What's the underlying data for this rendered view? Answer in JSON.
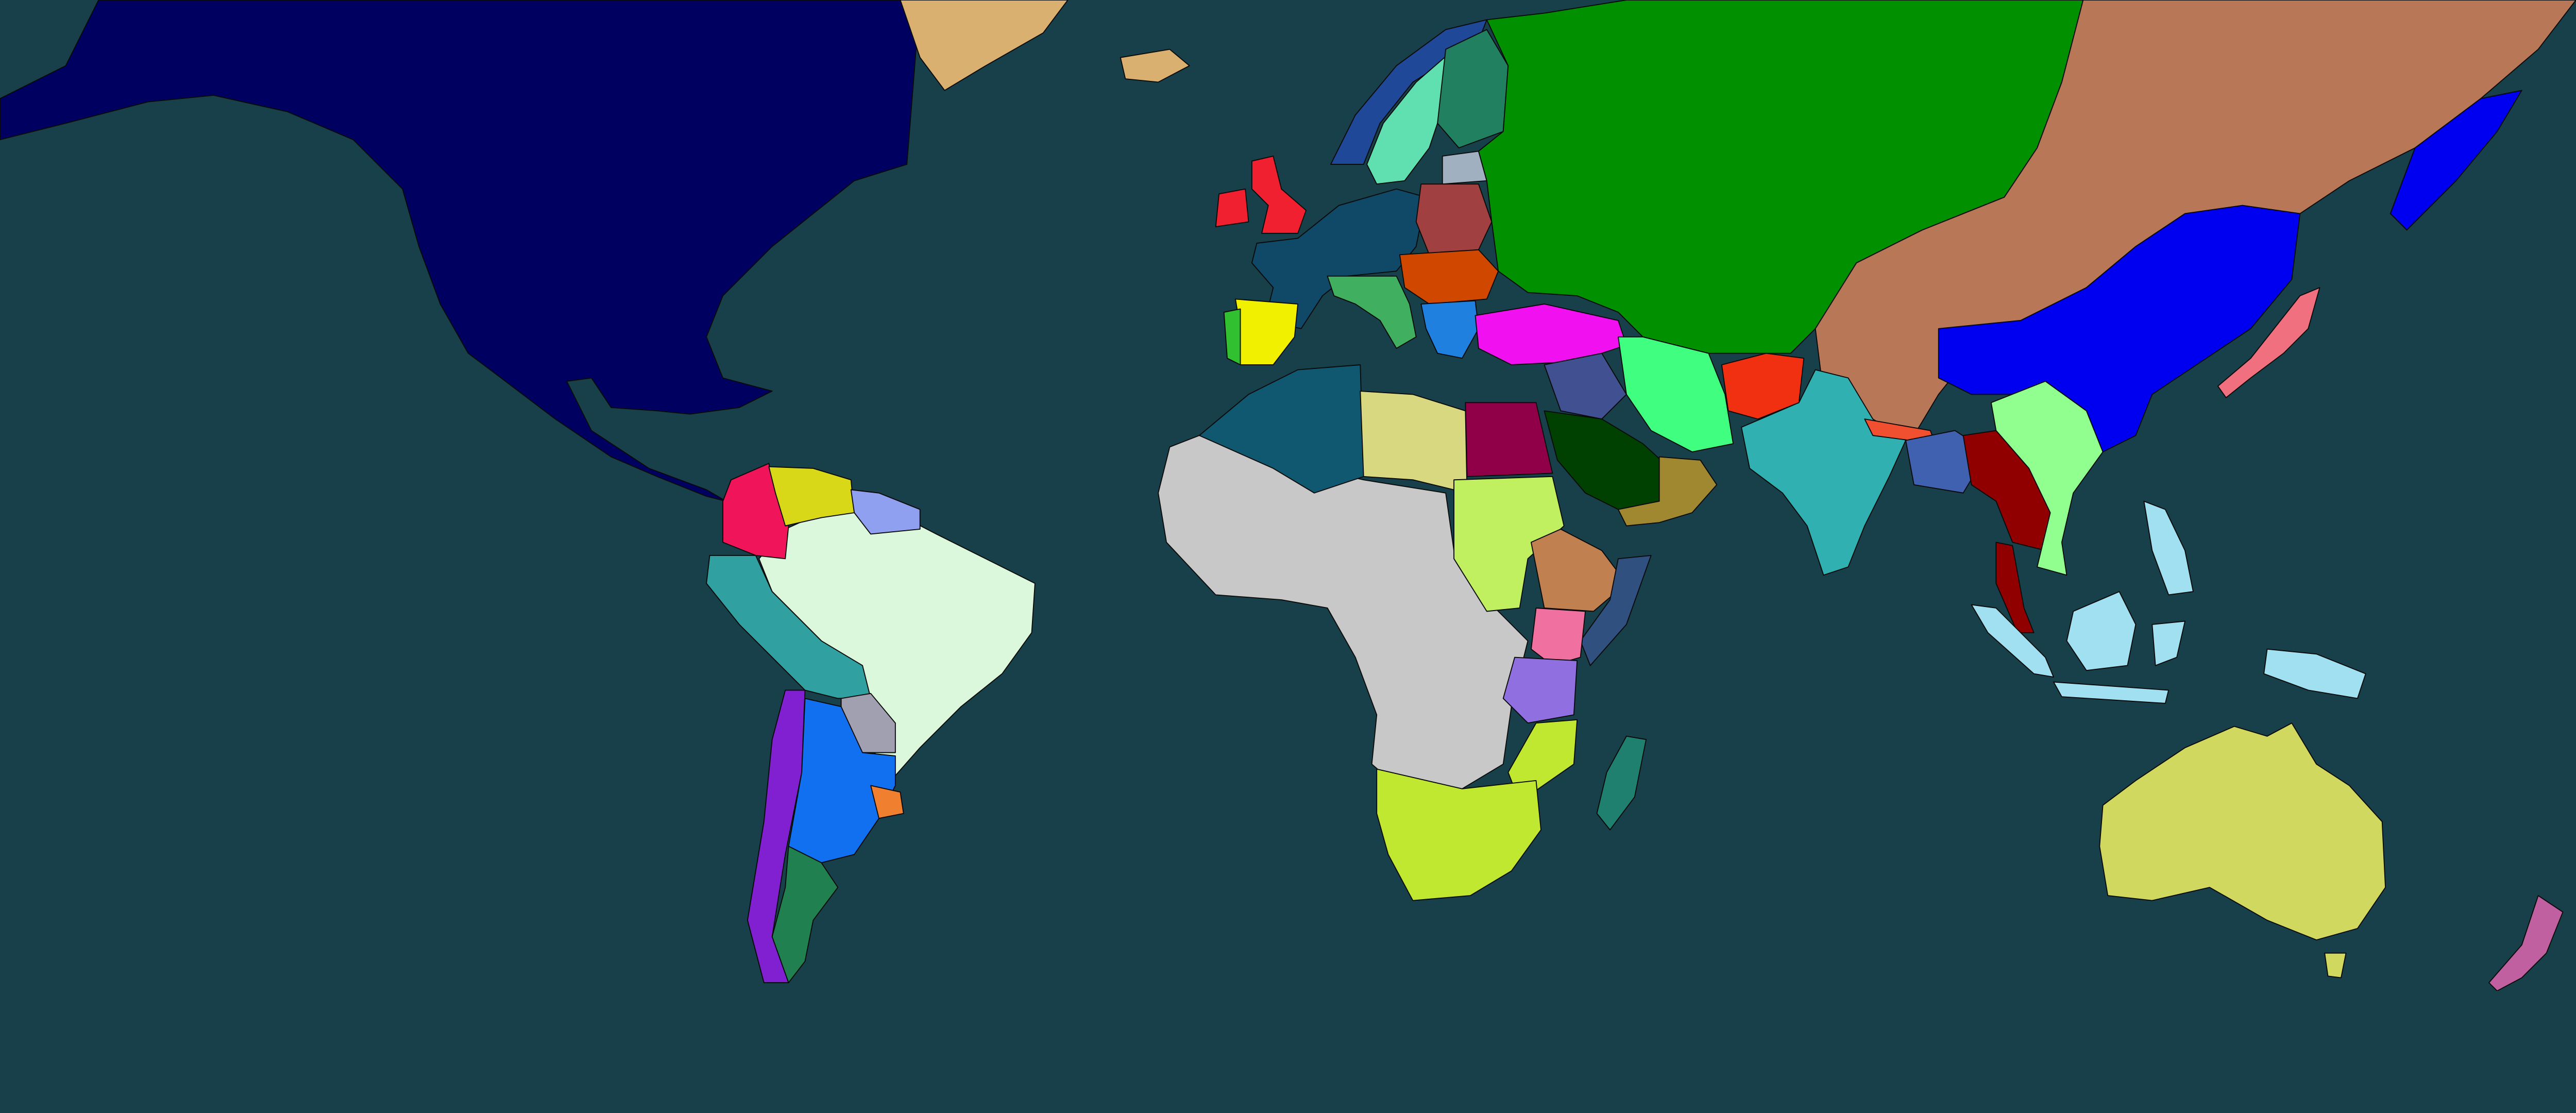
{
  "map": {
    "ocean_color": "#18404a",
    "border_color": "#0a0a0a",
    "region_colors": {
      "north-america": "#000060",
      "greenland": "#d9b070",
      "iceland": "#d9b070",
      "colombia": "#f0145a",
      "venezuela": "#d8d818",
      "guianas": "#90a0f0",
      "brazil": "#dcf8dc",
      "peru": "#30a0a0",
      "bolivia": "#a0a0b0",
      "paraguay-argentina": "#1070f0",
      "chile": "#8020d0",
      "patagonia": "#208050",
      "uruguay": "#f08030",
      "uk": "#f02030",
      "france-germany": "#104868",
      "spain": "#f0f000",
      "portugal": "#30c030",
      "sweden": "#60e0b0",
      "norway": "#204898",
      "finland": "#208060",
      "baltics": "#a0b0c0",
      "poland": "#a04040",
      "hungary-romania": "#d04800",
      "italy": "#40b060",
      "balkans": "#2080e0",
      "turkey": "#f010f0",
      "ussr": "#009000",
      "mongolia-manchuria": "#b87858",
      "china": "#0000f0",
      "japan": "#f07080",
      "iraq-syria": "#405090",
      "saudi-arabia": "#004000",
      "oman-yemen": "#a08830",
      "iran": "#40ff80",
      "afghanistan": "#f03010",
      "india": "#30b0b0",
      "nepal": "#f05030",
      "bengal-burma-north": "#4060b0",
      "siam-burma": "#900000",
      "indochina": "#90ff90",
      "indonesia": "#a0e0f0",
      "west-central-africa": "#c8c8c8",
      "algeria": "#105870",
      "libya": "#d8d880",
      "egypt": "#900048",
      "sudan": "#c0f060",
      "ethiopia": "#c08050",
      "somalia": "#305080",
      "kenya": "#f070a0",
      "tanganyika": "#9070e0",
      "mozambique": "#c0e830",
      "south-africa": "#c0e830",
      "madagascar": "#208070",
      "australia": "#d0d860",
      "new-zealand": "#c060a0"
    }
  }
}
